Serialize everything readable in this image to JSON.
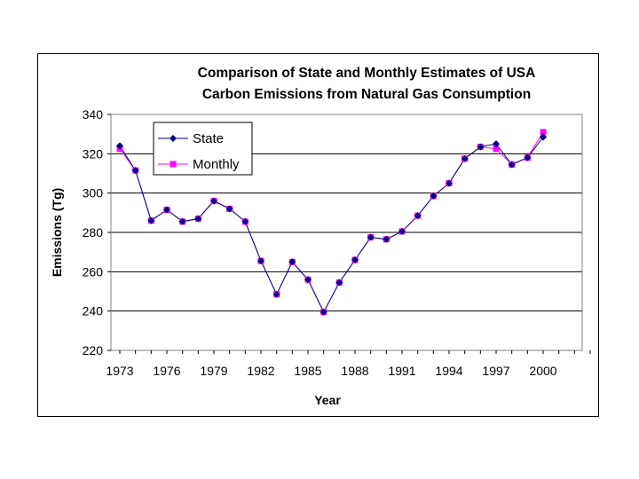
{
  "chart_data": {
    "type": "line",
    "title": [
      "Comparison of State and Monthly Estimates of USA",
      "Carbon Emissions from Natural Gas Consumption"
    ],
    "xlabel": "Year",
    "ylabel": "Emissions (Tg)",
    "ylim": [
      220,
      340
    ],
    "yticks": [
      220,
      240,
      260,
      280,
      300,
      320,
      340
    ],
    "xlim": [
      1973,
      2003
    ],
    "xticks": [
      1973,
      1976,
      1979,
      1982,
      1985,
      1988,
      1991,
      1994,
      1997,
      2000
    ],
    "grid": "horizontal",
    "legend_position": "top-left",
    "x": [
      1973,
      1974,
      1975,
      1976,
      1977,
      1978,
      1979,
      1980,
      1981,
      1982,
      1983,
      1984,
      1985,
      1986,
      1987,
      1988,
      1989,
      1990,
      1991,
      1992,
      1993,
      1994,
      1995,
      1996,
      1997,
      1998,
      1999,
      2000
    ],
    "series": [
      {
        "name": "State",
        "color": "#000080",
        "marker": "diamond",
        "values": [
          324,
          311.5,
          286,
          291.5,
          285.5,
          287,
          296,
          292,
          285.5,
          265.5,
          248.5,
          265,
          256,
          239.5,
          254.5,
          266,
          277.5,
          276.5,
          280.5,
          288.5,
          298.5,
          305,
          317.5,
          323.5,
          325,
          314.5,
          318,
          328.5
        ]
      },
      {
        "name": "Monthly",
        "color": "#FF00FF",
        "marker": "square",
        "values": [
          322.5,
          311.5,
          286,
          291.5,
          285.5,
          287,
          296,
          292,
          285.5,
          265.5,
          248.5,
          265,
          256,
          239.5,
          254.5,
          266,
          277.5,
          276.5,
          280.5,
          288.5,
          298.5,
          305,
          317.5,
          323.5,
          322.5,
          314.5,
          318,
          331
        ]
      }
    ]
  }
}
